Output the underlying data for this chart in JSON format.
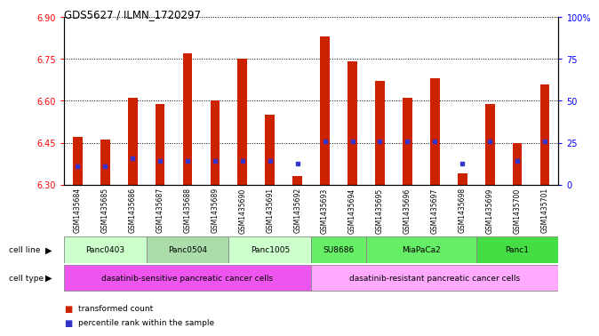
{
  "title": "GDS5627 / ILMN_1720297",
  "samples": [
    "GSM1435684",
    "GSM1435685",
    "GSM1435686",
    "GSM1435687",
    "GSM1435688",
    "GSM1435689",
    "GSM1435690",
    "GSM1435691",
    "GSM1435692",
    "GSM1435693",
    "GSM1435694",
    "GSM1435695",
    "GSM1435696",
    "GSM1435697",
    "GSM1435698",
    "GSM1435699",
    "GSM1435700",
    "GSM1435701"
  ],
  "bar_values": [
    6.47,
    6.46,
    6.61,
    6.59,
    6.77,
    6.6,
    6.75,
    6.55,
    6.33,
    6.83,
    6.74,
    6.67,
    6.61,
    6.68,
    6.34,
    6.59,
    6.45,
    6.66
  ],
  "blue_values": [
    6.365,
    6.365,
    6.395,
    6.385,
    6.385,
    6.385,
    6.385,
    6.385,
    6.375,
    6.455,
    6.455,
    6.455,
    6.455,
    6.455,
    6.375,
    6.455,
    6.385,
    6.455
  ],
  "ylim_min": 6.3,
  "ylim_max": 6.9,
  "yticks_left": [
    6.3,
    6.45,
    6.6,
    6.75,
    6.9
  ],
  "yticks_right_labels": [
    "0",
    "25",
    "50",
    "75",
    "100%"
  ],
  "bar_color": "#cc2200",
  "blue_color": "#3333cc",
  "cell_line_spans": [
    {
      "label": "Panc0403",
      "start": 0,
      "end": 3
    },
    {
      "label": "Panc0504",
      "start": 3,
      "end": 6
    },
    {
      "label": "Panc1005",
      "start": 6,
      "end": 9
    },
    {
      "label": "SU8686",
      "start": 9,
      "end": 11
    },
    {
      "label": "MiaPaCa2",
      "start": 11,
      "end": 15
    },
    {
      "label": "Panc1",
      "start": 15,
      "end": 18
    }
  ],
  "cell_line_colors": [
    "#ccffcc",
    "#aaddaa",
    "#ccffcc",
    "#66ee66",
    "#66ee66",
    "#44dd44"
  ],
  "cell_type_spans": [
    {
      "label": "dasatinib-sensitive pancreatic cancer cells",
      "start": 0,
      "end": 9
    },
    {
      "label": "dasatinib-resistant pancreatic cancer cells",
      "start": 9,
      "end": 18
    }
  ],
  "cell_type_colors": [
    "#ee55ee",
    "#ffaaff"
  ],
  "legend_items": [
    {
      "label": "transformed count",
      "color": "#cc2200"
    },
    {
      "label": "percentile rank within the sample",
      "color": "#3333cc"
    }
  ]
}
